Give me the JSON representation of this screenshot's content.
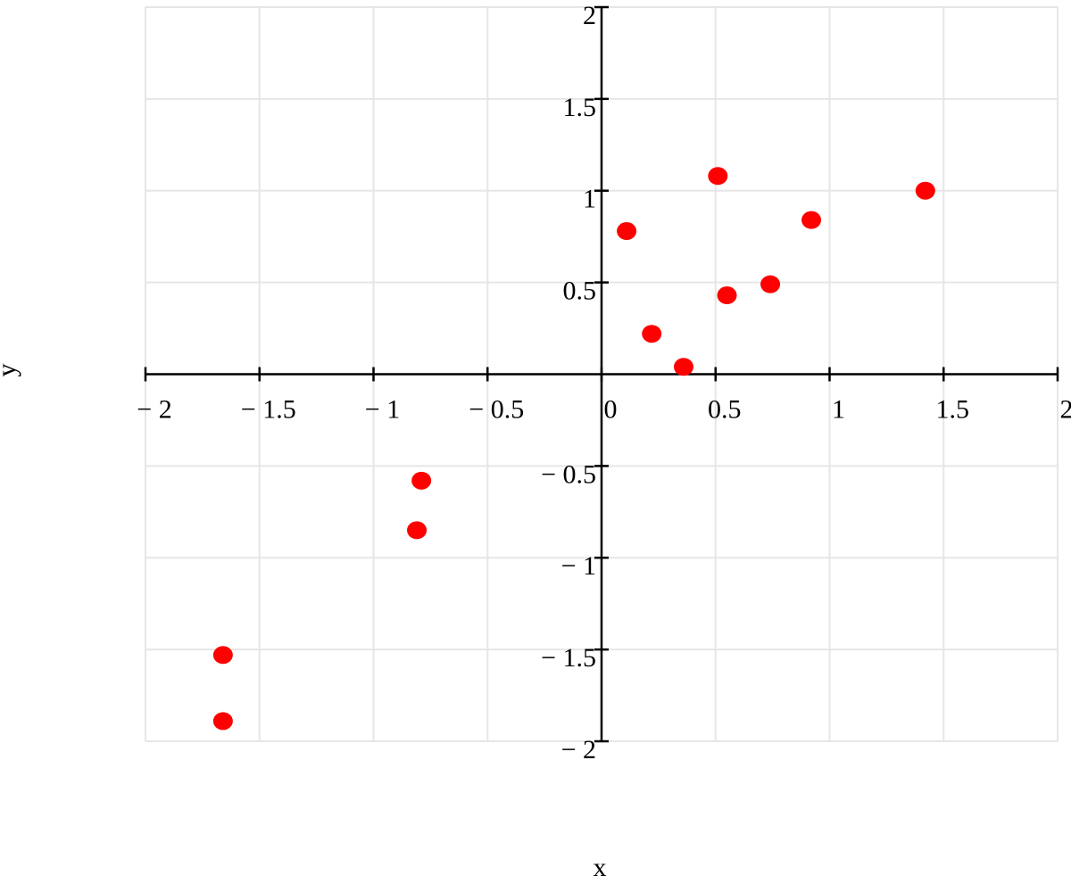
{
  "chart_data": {
    "type": "scatter",
    "x_label": "x",
    "y_label": "y",
    "color": "#ff0000",
    "grid": true,
    "xlim": [
      -2,
      2
    ],
    "ylim": [
      -2,
      2
    ],
    "xticks": [
      {
        "value": -2,
        "label": "− 2"
      },
      {
        "value": -1.5,
        "label": "− 1.5"
      },
      {
        "value": -1,
        "label": "− 1"
      },
      {
        "value": -0.5,
        "label": "− 0.5"
      },
      0,
      0.5,
      1,
      1.5,
      2
    ],
    "yticks": [
      {
        "value": -2,
        "label": "− 2"
      },
      {
        "value": -1.5,
        "label": "− 1.5"
      },
      {
        "value": -1,
        "label": "− 1"
      },
      {
        "value": -0.5,
        "label": "− 0.5"
      },
      0.5,
      1,
      1.5,
      2
    ],
    "x": [
      0.11,
      0.51,
      1.42,
      0.92,
      0.55,
      0.74,
      0.22,
      0.36,
      -0.79,
      -0.81,
      -1.66,
      -1.66
    ],
    "values": [
      0.78,
      1.08,
      1.0,
      0.84,
      0.43,
      0.49,
      0.22,
      0.04,
      -0.58,
      -0.85,
      -1.53,
      -1.89
    ]
  }
}
